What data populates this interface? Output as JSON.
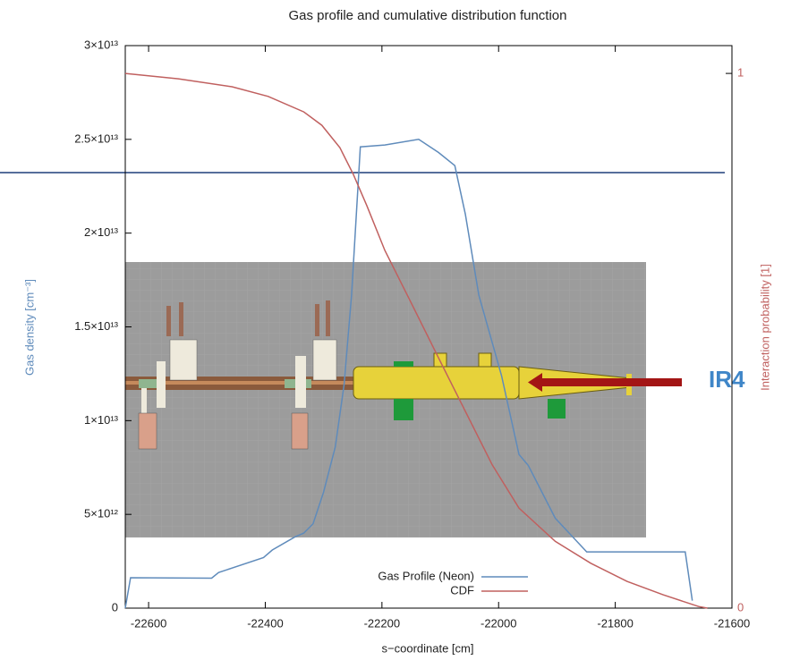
{
  "chart_data": {
    "type": "line",
    "title": "Gas profile and cumulative distribution function",
    "x_label": "s−coordinate [cm]",
    "y_label": "Gas density [cm⁻³]",
    "y2_label": "Interaction probability [1]",
    "annotation": "IR4",
    "xlim": [
      -22640,
      -21600
    ],
    "xticks": [
      -22600,
      -22400,
      -22200,
      -22000,
      -21800,
      -21600
    ],
    "ylim": [
      0,
      30000000000000.0
    ],
    "yticks": [
      0,
      {
        "value": 5000000000000.0,
        "label": "5×10¹²"
      },
      {
        "value": 10000000000000.0,
        "label": "1×10¹³"
      },
      {
        "value": 15000000000000.0,
        "label": "1.5×10¹³"
      },
      {
        "value": 20000000000000.0,
        "label": "2×10¹³"
      },
      {
        "value": 25000000000000.0,
        "label": "2.5×10¹³"
      },
      {
        "value": 30000000000000.0,
        "label": "3×10¹³"
      }
    ],
    "y2lim": [
      0,
      1.052
    ],
    "y2ticks": [
      0,
      1
    ],
    "legend": "bottom-right",
    "series": [
      {
        "name": "Gas Profile (Neon)",
        "color": "#5f8bbb",
        "x": [
          -22640,
          -22631,
          -22492,
          -22480,
          -22403,
          -22388,
          -22349,
          -22334,
          -22318,
          -22300,
          -22280,
          -22265,
          -22252,
          -22237,
          -22195,
          -22137,
          -22103,
          -22075,
          -22057,
          -22034,
          -21995,
          -21965,
          -21949,
          -21903,
          -21849,
          -21680,
          -21668
        ],
        "values": [
          0,
          1620000000000.0,
          1600000000000.0,
          1900000000000.0,
          2700000000000.0,
          3100000000000.0,
          3800000000000.0,
          4000000000000.0,
          4500000000000.0,
          6200000000000.0,
          8600000000000.0,
          11900000000000.0,
          16700000000000.0,
          24600000000000.0,
          24700000000000.0,
          25000000000000.0,
          24300000000000.0,
          23600000000000.0,
          21000000000000.0,
          16700000000000.0,
          12400000000000.0,
          8200000000000.0,
          7600000000000.0,
          4800000000000.0,
          3000000000000.0,
          3000000000000.0,
          400000000000.0
        ]
      },
      {
        "name": "CDF",
        "color": "#c0605f",
        "axis": "y2",
        "x": [
          -22640,
          -22549,
          -22457,
          -22395,
          -22334,
          -22303,
          -22272,
          -22249,
          -22226,
          -22195,
          -22149,
          -22103,
          -22057,
          -22011,
          -21965,
          -21903,
          -21842,
          -21780,
          -21718,
          -21657,
          -21642
        ],
        "values": [
          1.0,
          0.99,
          0.975,
          0.957,
          0.928,
          0.903,
          0.861,
          0.811,
          0.753,
          0.669,
          0.569,
          0.468,
          0.368,
          0.268,
          0.187,
          0.125,
          0.084,
          0.05,
          0.025,
          0.003,
          0
        ]
      }
    ]
  }
}
